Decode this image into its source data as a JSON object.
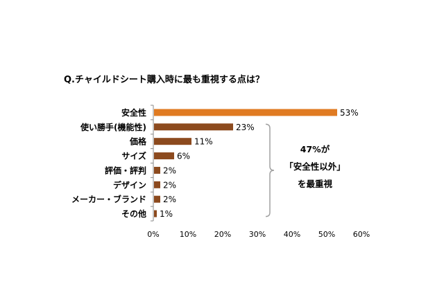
{
  "chart_data": {
    "type": "bar",
    "orientation": "horizontal",
    "title": "Q.チャイルドシート購入時に最も重視する点は？",
    "categories": [
      "安全性",
      "使い勝手(機能性)",
      "価格",
      "サイズ",
      "評価・評判",
      "デザイン",
      "メーカー・ブランド",
      "その他"
    ],
    "values": [
      53,
      23,
      11,
      6,
      2,
      2,
      2,
      1
    ],
    "value_labels": [
      "53%",
      "23%",
      "11%",
      "6%",
      "2%",
      "2%",
      "2%",
      "1%"
    ],
    "xlim": [
      0,
      60
    ],
    "ticks": [
      "0%",
      "10%",
      "20%",
      "30%",
      "40%",
      "50%",
      "60%"
    ],
    "xlabel": "",
    "ylabel": "",
    "grid": false,
    "legend": "none",
    "colors": {
      "highlight": "#E07B22",
      "default": "#8C4A1E",
      "bracket": "#A0A0A0"
    },
    "annotation": {
      "lines": [
        "47%が",
        "「安全性以外」",
        "を最重視"
      ],
      "bracket_from": 1,
      "bracket_to": 7
    }
  }
}
